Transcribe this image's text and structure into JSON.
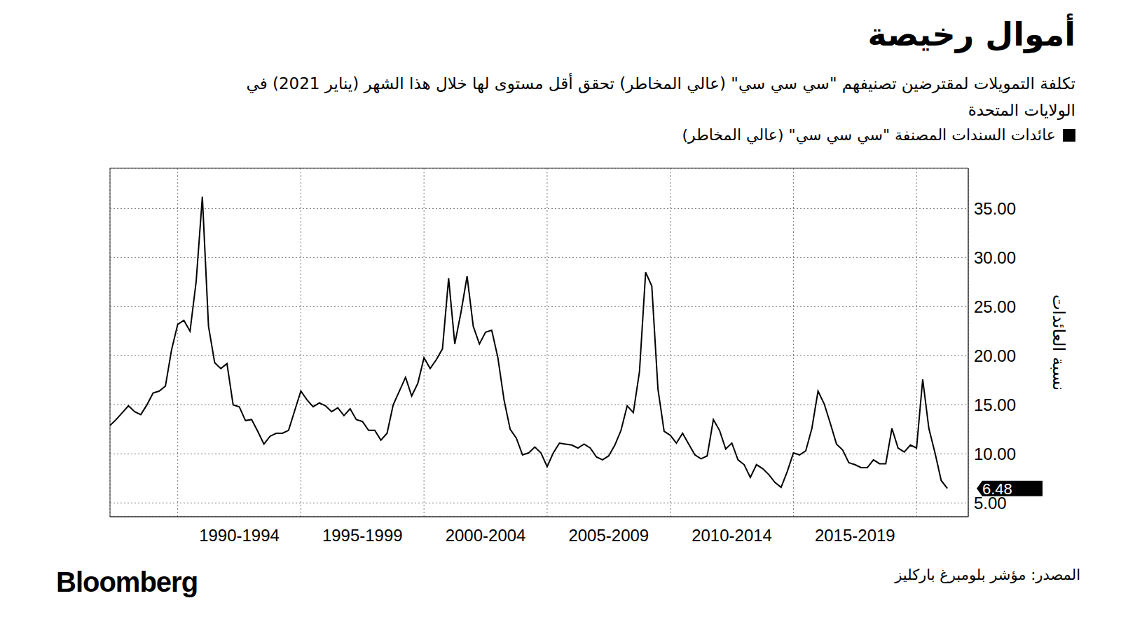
{
  "chart_data": {
    "type": "line",
    "title": "أموال رخيصة",
    "subtitle": "تكلفة التمويلات لمقترضين تصنيفهم \"سي سي سي\" (عالي المخاطر) تحقق أقل مستوى لها خلال هذا الشهر (يناير 2021) في الولايات المتحدة",
    "y_label": "نسبة العائدات",
    "source": "المصدر: مؤشر بلومبرغ باركليز",
    "brand": "Bloomberg",
    "grid": true,
    "x": [
      1987.25,
      1987.5,
      1987.75,
      1988,
      1988.25,
      1988.5,
      1988.75,
      1989,
      1989.25,
      1989.5,
      1989.75,
      1990,
      1990.25,
      1990.5,
      1990.75,
      1991,
      1991.25,
      1991.5,
      1991.75,
      1992,
      1992.25,
      1992.5,
      1992.75,
      1993,
      1993.25,
      1993.5,
      1993.75,
      1994,
      1994.25,
      1994.5,
      1994.75,
      1995,
      1995.25,
      1995.5,
      1995.75,
      1996,
      1996.25,
      1996.5,
      1996.75,
      1997,
      1997.25,
      1997.5,
      1997.75,
      1998,
      1998.25,
      1998.5,
      1998.75,
      1999,
      1999.25,
      1999.5,
      1999.75,
      2000,
      2000.25,
      2000.5,
      2000.75,
      2001,
      2001.25,
      2001.5,
      2001.75,
      2002,
      2002.25,
      2002.5,
      2002.75,
      2003,
      2003.25,
      2003.5,
      2003.75,
      2004,
      2004.25,
      2004.5,
      2004.75,
      2005,
      2005.25,
      2005.5,
      2005.75,
      2006,
      2006.25,
      2006.5,
      2006.75,
      2007,
      2007.25,
      2007.5,
      2007.75,
      2008,
      2008.25,
      2008.5,
      2008.75,
      2009,
      2009.25,
      2009.5,
      2009.75,
      2010,
      2010.25,
      2010.5,
      2010.75,
      2011,
      2011.25,
      2011.5,
      2011.75,
      2012,
      2012.25,
      2012.5,
      2012.75,
      2013,
      2013.25,
      2013.5,
      2013.75,
      2014,
      2014.25,
      2014.5,
      2014.75,
      2015,
      2015.25,
      2015.5,
      2015.75,
      2016,
      2016.25,
      2016.5,
      2016.75,
      2017,
      2017.25,
      2017.5,
      2017.75,
      2018,
      2018.25,
      2018.5,
      2018.75,
      2019,
      2019.25,
      2019.5,
      2019.75,
      2020,
      2020.25,
      2020.5,
      2020.75,
      2021,
      2021.25
    ],
    "series": [
      {
        "name": "عائدات السندات المصنفة \"سي سي سي\" (عالي المخاطر)",
        "color": "#000000",
        "values": [
          12.9,
          13.5,
          14.2,
          14.9,
          14.3,
          14.0,
          15.0,
          16.2,
          16.4,
          16.9,
          20.6,
          23.2,
          23.6,
          22.5,
          27.6,
          36.2,
          23.0,
          19.3,
          18.7,
          19.2,
          15.0,
          14.8,
          13.4,
          13.5,
          12.3,
          11.0,
          11.8,
          12.1,
          12.1,
          12.4,
          14.4,
          16.4,
          15.5,
          14.8,
          15.2,
          14.9,
          14.3,
          14.7,
          13.9,
          14.6,
          13.5,
          13.3,
          12.4,
          12.4,
          11.4,
          12.1,
          15.0,
          16.4,
          17.8,
          15.9,
          17.2,
          19.8,
          18.7,
          19.6,
          20.7,
          27.9,
          21.2,
          24.4,
          28.1,
          23.0,
          21.2,
          22.4,
          22.6,
          19.8,
          15.5,
          12.5,
          11.6,
          9.9,
          10.1,
          10.7,
          10.1,
          8.7,
          10.1,
          11.1,
          11.0,
          10.9,
          10.6,
          11.0,
          10.6,
          9.7,
          9.4,
          9.8,
          10.9,
          12.4,
          14.9,
          14.2,
          18.4,
          28.5,
          27.1,
          16.6,
          12.3,
          11.9,
          11.1,
          12.1,
          11.0,
          9.9,
          9.5,
          9.8,
          13.5,
          12.4,
          10.5,
          11.1,
          9.4,
          8.9,
          7.6,
          8.9,
          8.5,
          7.9,
          7.1,
          6.6,
          8.2,
          10.1,
          9.9,
          10.3,
          12.6,
          16.4,
          15.1,
          13.1,
          11.0,
          10.4,
          9.1,
          8.9,
          8.6,
          8.6,
          9.4,
          9.0,
          9.0,
          12.6,
          10.6,
          10.2,
          10.9,
          10.6,
          17.6,
          12.6,
          10.1,
          7.3,
          6.48
        ]
      }
    ],
    "xlim": [
      1987.25,
      2022.1
    ],
    "xticks": [
      {
        "value": 1990,
        "label": "1990-1994"
      },
      {
        "value": 1995,
        "label": "1995-1999"
      },
      {
        "value": 2000,
        "label": "2000-2004"
      },
      {
        "value": 2005,
        "label": "2005-2009"
      },
      {
        "value": 2010,
        "label": "2010-2014"
      },
      {
        "value": 2015,
        "label": "2015-2019"
      }
    ],
    "ylim": [
      3.6,
      39.1
    ],
    "yticks": [
      {
        "value": 5,
        "label": "5.00"
      },
      {
        "value": 10,
        "label": "10.00"
      },
      {
        "value": 15,
        "label": "15.00"
      },
      {
        "value": 20,
        "label": "20.00"
      },
      {
        "value": 25,
        "label": "25.00"
      },
      {
        "value": 30,
        "label": "30.00"
      },
      {
        "value": 35,
        "label": "35.00"
      }
    ],
    "annotations": [
      {
        "text": "6.48",
        "y": 6.48
      }
    ]
  }
}
